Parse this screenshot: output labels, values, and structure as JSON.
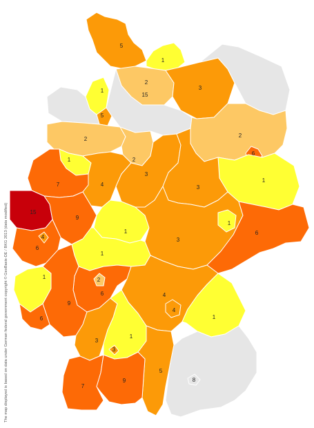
{
  "colors": {
    "no_data": "#e6e6e6",
    "scale": {
      "1": "#ffff33",
      "2": "#fdc864",
      "3": "#fc9a08",
      "4": "#fc9a08",
      "5": "#fc9a08",
      "6": "#fd6a06",
      "7": "#fd6a06",
      "9": "#fd6a06",
      "15": "#c8000a"
    }
  },
  "attribution": "The map displayed is based on data under German federal government copyright © GeoBasis-DE / BKG 2013 (data modified)",
  "map_data": {
    "type": "choropleth",
    "regions": [
      {
        "id": "sh-north",
        "value": "5"
      },
      {
        "id": "nordwestmecklenburg",
        "value": "1"
      },
      {
        "id": "hamburg",
        "value": "15"
      },
      {
        "id": "hh-south",
        "value": "2"
      },
      {
        "id": "mv-east",
        "value": "3"
      },
      {
        "id": "mv-northeast",
        "value": null
      },
      {
        "id": "friesland",
        "value": "1"
      },
      {
        "id": "wesermarsch",
        "value": "5"
      },
      {
        "id": "ostfriesland",
        "value": null
      },
      {
        "id": "lueneburg-heath",
        "value": null
      },
      {
        "id": "brandenburg-north",
        "value": "2"
      },
      {
        "id": "berlin",
        "value": "6"
      },
      {
        "id": "brandenburg-south",
        "value": "1"
      },
      {
        "id": "emsland",
        "value": "2"
      },
      {
        "id": "hannover",
        "value": "2"
      },
      {
        "id": "osnabrueck-south",
        "value": "1"
      },
      {
        "id": "muensterland",
        "value": "7"
      },
      {
        "id": "ostwestfalen",
        "value": "4"
      },
      {
        "id": "harz",
        "value": "3"
      },
      {
        "id": "sachsen-anhalt",
        "value": "3"
      },
      {
        "id": "aachen",
        "value": "15"
      },
      {
        "id": "koeln-bonn",
        "value": "9"
      },
      {
        "id": "eifel",
        "value": "6"
      },
      {
        "id": "trier-pocket",
        "value": "4"
      },
      {
        "id": "nordhessen",
        "value": "1"
      },
      {
        "id": "thueringen",
        "value": "3"
      },
      {
        "id": "leipzig",
        "value": "1"
      },
      {
        "id": "sachsen",
        "value": "6"
      },
      {
        "id": "mittelhessen",
        "value": "1"
      },
      {
        "id": "saarland-pfalz",
        "value": "1"
      },
      {
        "id": "rhein-main",
        "value": "6"
      },
      {
        "id": "rhein-neckar",
        "value": "9"
      },
      {
        "id": "frankfurt",
        "value": "2"
      },
      {
        "id": "saarbruecken",
        "value": "6"
      },
      {
        "id": "franken",
        "value": "4"
      },
      {
        "id": "nuernberg",
        "value": "4"
      },
      {
        "id": "oberpfalz",
        "value": "1"
      },
      {
        "id": "wuerttemberg-north",
        "value": "3"
      },
      {
        "id": "stuttgart",
        "value": "1"
      },
      {
        "id": "stuttgart-city",
        "value": "3"
      },
      {
        "id": "allgaeu",
        "value": "5"
      },
      {
        "id": "baden-south",
        "value": "7"
      },
      {
        "id": "schwaben-south",
        "value": "9"
      },
      {
        "id": "oberbayern",
        "value": null
      },
      {
        "id": "muenchen",
        "value": "8"
      }
    ]
  }
}
